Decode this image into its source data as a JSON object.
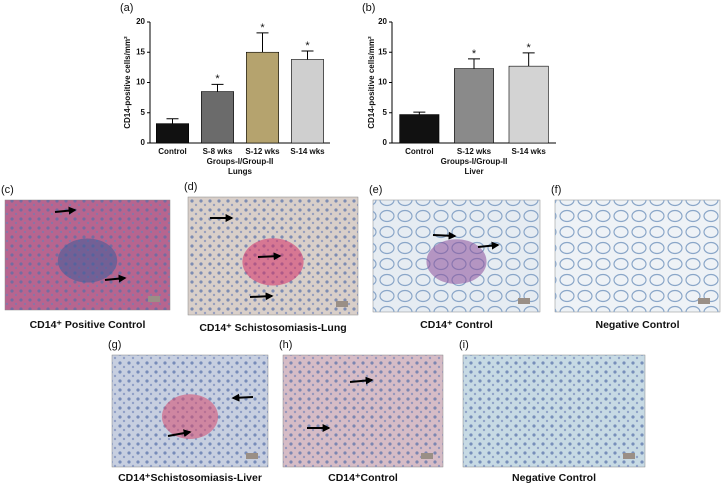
{
  "chart_data": [
    {
      "type": "bar",
      "title": "(a)",
      "ylabel": "CD14-positive cells/mm²",
      "xlabel": "Groups-I/Group-II",
      "subtitle": "Lungs",
      "categories": [
        "Control",
        "S-8 wks",
        "S-12 wks",
        "S-14 wks"
      ],
      "values": [
        3.2,
        8.5,
        15,
        13.8
      ],
      "errors": [
        0.8,
        1.2,
        3.2,
        1.4
      ],
      "colors": [
        "#111111",
        "#6b6b6b",
        "#b5a36e",
        "#cfcfcf"
      ],
      "annotations": [
        {
          "category": "S-8 wks",
          "text": "*"
        },
        {
          "category": "S-12 wks",
          "text": "*"
        },
        {
          "category": "S-14 wks",
          "text": "*"
        }
      ],
      "ylim": [
        0,
        20
      ],
      "yticks": [
        0,
        5,
        10,
        15,
        20
      ]
    },
    {
      "type": "bar",
      "title": "(b)",
      "ylabel": "CD14-positive cells/mm²",
      "xlabel": "Groups-I/Group-II",
      "subtitle": "Liver",
      "categories": [
        "Control",
        "S-12 wks",
        "S-14 wks"
      ],
      "values": [
        4.7,
        12.3,
        12.7
      ],
      "errors": [
        0.4,
        1.6,
        2.2
      ],
      "colors": [
        "#111111",
        "#8a8a8a",
        "#d3d3d3"
      ],
      "annotations": [
        {
          "category": "S-12 wks",
          "text": "*"
        },
        {
          "category": "S-14 wks",
          "text": "*"
        }
      ],
      "ylim": [
        0,
        20
      ],
      "yticks": [
        0,
        5,
        10,
        15,
        20
      ]
    }
  ],
  "panels": [
    {
      "label": "(c)",
      "caption": "CD14⁺ Positive Control"
    },
    {
      "label": "(d)",
      "caption": "CD14⁺ Schistosomiasis-Lung"
    },
    {
      "label": "(e)",
      "caption": "CD14⁺ Control"
    },
    {
      "label": "(f)",
      "caption": "Negative Control"
    },
    {
      "label": "(g)",
      "caption": "CD14⁺Schistosomiasis-Liver"
    },
    {
      "label": "(h)",
      "caption": "CD14⁺Control"
    },
    {
      "label": "(i)",
      "caption": "Negative Control"
    }
  ]
}
